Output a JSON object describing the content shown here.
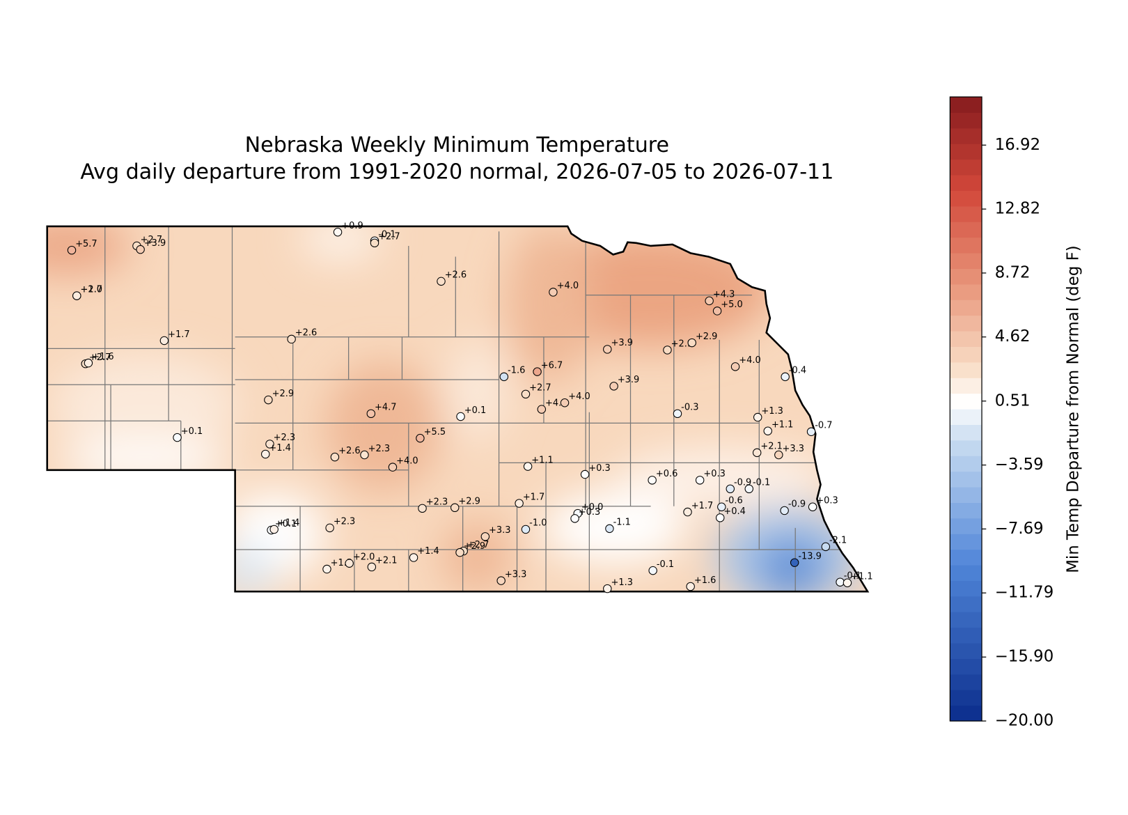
{
  "title": "Nebraska Weekly Minimum Temperature",
  "subtitle": "Avg daily departure from 1991-2020 normal, 2026-07-05 to 2026-07-11",
  "colorbar": {
    "label": "Min Temp Departure from Normal (deg F)",
    "lim": [
      -20,
      20.01
    ],
    "ticks": [
      16.92,
      12.82,
      8.72,
      4.62,
      0.51,
      {
        "value": -3.59,
        "label": "−3.59"
      },
      {
        "value": -7.69,
        "label": "−7.69"
      },
      {
        "value": -11.79,
        "label": "−11.79"
      },
      {
        "value": -15.9,
        "label": "−15.90"
      },
      {
        "value": -20,
        "label": "−20.00"
      }
    ]
  },
  "stations": {
    "values": [
      5.7,
      2.7,
      3.9,
      2.0,
      1.7,
      2.7,
      1.6,
      1.7,
      0.1,
      0.9,
      -0.1,
      2.7,
      2.6,
      4.0,
      2.6,
      2.9,
      2.3,
      1.4,
      4.7,
      5.5,
      2.6,
      2.3,
      4.0,
      0.1,
      -1.6,
      6.7,
      2.7,
      4.0,
      4.0,
      3.9,
      3.9,
      2.9,
      2.9,
      4.3,
      5.0,
      4.0,
      -0.4,
      -0.3,
      1.3,
      1.1,
      -0.7,
      2.1,
      3.3,
      1.1,
      0.3,
      0.6,
      0.3,
      -0.9,
      -0.1,
      -0.6,
      0.4,
      1.7,
      -0.9,
      0.3,
      1.7,
      -1.0,
      0.0,
      0.3,
      -1.1,
      2.3,
      2.9,
      2.3,
      0.1,
      1.4,
      3.3,
      2.7,
      2.9,
      1.4,
      1.3,
      2.0,
      2.1,
      3.3,
      1.3,
      -0.1,
      1.6,
      -2.1,
      -13.9,
      -0.1,
      1.1
    ],
    "value_labels": [
      "+5.7",
      "+2.7",
      "+3.9",
      "+2.0",
      "+1.7",
      "+2.7",
      "+1.6",
      "+1.7",
      "+0.1",
      "+0.9",
      "-0.1",
      "+2.7",
      "+2.6",
      "+4.0",
      "+2.6",
      "+2.9",
      "+2.3",
      "+1.4",
      "+4.7",
      "+5.5",
      "+2.6",
      "+2.3",
      "+4.0",
      "+0.1",
      "-1.6",
      "+6.7",
      "+2.7",
      "+4.0",
      "+4.0",
      "+3.9",
      "+3.9",
      "+2.9",
      "+2.9",
      "+4.3",
      "+5.0",
      "+4.0",
      "-0.4",
      "-0.3",
      "+1.3",
      "+1.1",
      "-0.7",
      "+2.1",
      "+3.3",
      "+1.1",
      "+0.3",
      "+0.6",
      "+0.3",
      "-0.9",
      "-0.1",
      "-0.6",
      "+0.4",
      "+1.7",
      "-0.9",
      "+0.3",
      "+1.7",
      "-1.0",
      "+0.0",
      "+0.3",
      "-1.1",
      "+2.3",
      "+2.9",
      "+2.3",
      "+0.1",
      "+1.4",
      "+3.3",
      "+2.7",
      "+2.9",
      "+1.4",
      "+1.3",
      "+2.0",
      "+2.1",
      "+3.3",
      "+1.3",
      "-0.1",
      "+1.6",
      "-2.1",
      "-13.9",
      "-0.1",
      "+1.1"
    ]
  }
}
